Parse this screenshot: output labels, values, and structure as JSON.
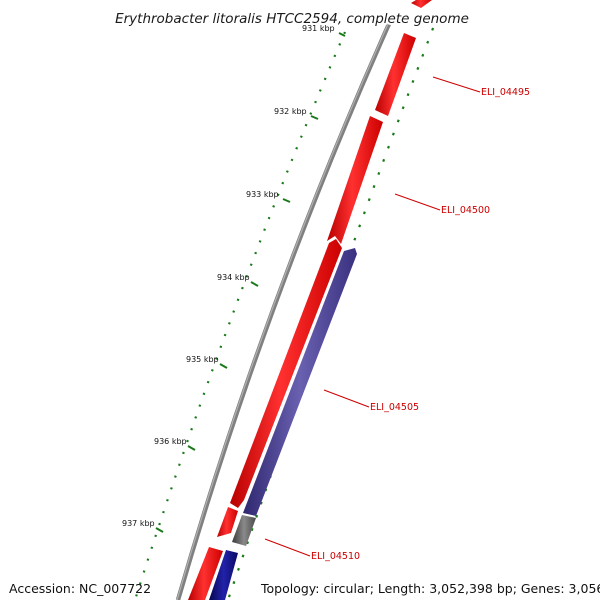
{
  "title": "Erythrobacter litoralis HTCC2594, complete genome",
  "footer": {
    "accession": "Accession: NC_007722",
    "topology": "Topology: circular; Length: 3,052,398 bp; Genes: 3,056"
  },
  "ticks": [
    "931 kbp",
    "932 kbp",
    "933 kbp",
    "934 kbp",
    "935 kbp",
    "936 kbp",
    "937 kbp"
  ],
  "genes": [
    {
      "label": "ELI_04495",
      "strand": "+",
      "color": "#ee1111"
    },
    {
      "label": "ELI_04500",
      "strand": "+",
      "color": "#ee1111"
    },
    {
      "label": "ELI_04505",
      "strand": "-",
      "color": "#4a3f8f"
    },
    {
      "label": "ELI_04510",
      "strand": "-",
      "color": "#5a5a5a"
    }
  ],
  "colors": {
    "forward_gene": "#ee1111",
    "reverse_gene": "#4a3f8f",
    "reverse_gene_dark": "#10107a",
    "pseudo_gene": "#5a5a5a",
    "backbone": "#808080",
    "tick": "#1a7a1a",
    "label": "#cc0000"
  }
}
